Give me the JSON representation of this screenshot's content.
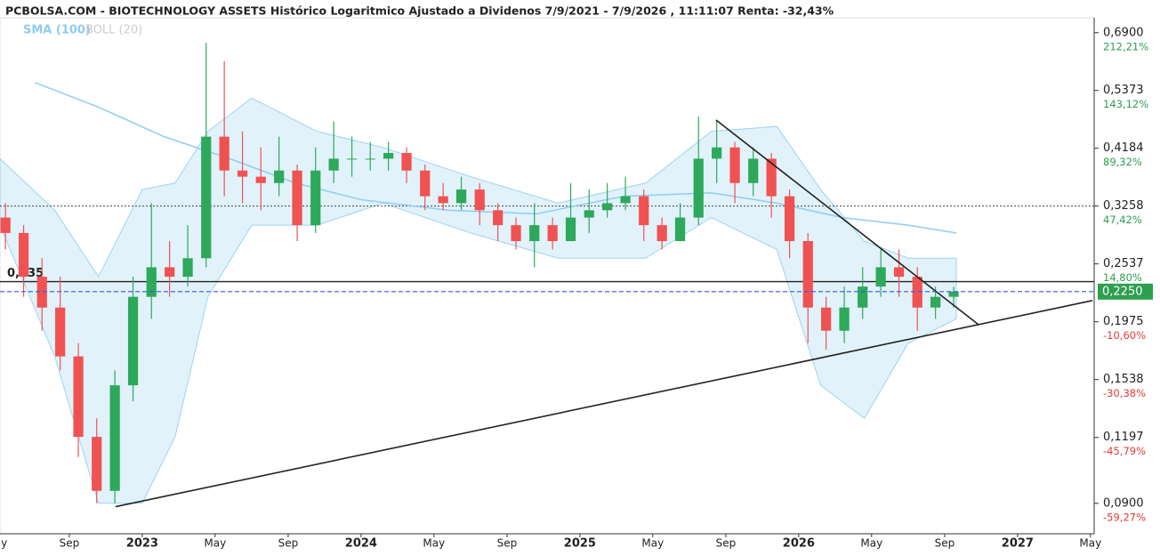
{
  "chart_data": {
    "type": "candlestick",
    "title": "PCBOLSA.COM - BIOTECHNOLOGY ASSETS Histórico Logaritmico Ajustado a Dividenos 7/9/2021 - 7/9/2026 , 11:11:07 Renta: -32,43%",
    "log_scale": true,
    "up_color": "#2ea85a",
    "down_color": "#f05252",
    "xlim": [
      2022.35,
      2027.35
    ],
    "ylim": [
      0.0789,
      0.736
    ],
    "yticks": [
      {
        "value": 0.69,
        "label": "0,6900"
      },
      {
        "value": 0.5373,
        "label": "0,5373"
      },
      {
        "value": 0.4184,
        "label": "0,4184"
      },
      {
        "value": 0.3258,
        "label": "0,3258"
      },
      {
        "value": 0.2537,
        "label": "0,2537"
      },
      {
        "value": 0.1975,
        "label": "0,1975"
      },
      {
        "value": 0.1538,
        "label": "0,1538"
      },
      {
        "value": 0.1197,
        "label": "0,1197"
      },
      {
        "value": 0.09,
        "label": "0,0900"
      }
    ],
    "ytick_returns": [
      "212,21%",
      "143,12%",
      "89,32%",
      "47,42%",
      "14,80%",
      "-10,60%",
      "-30,38%",
      "-45,79%",
      "-59,27%"
    ],
    "xticks": [
      {
        "value": 2022.333,
        "label": "May"
      },
      {
        "value": 2022.667,
        "label": "Sep"
      },
      2023,
      {
        "value": 2023.333,
        "label": "May"
      },
      {
        "value": 2023.667,
        "label": "Sep"
      },
      2024,
      {
        "value": 2024.333,
        "label": "May"
      },
      {
        "value": 2024.667,
        "label": "Sep"
      },
      2025,
      {
        "value": 2025.333,
        "label": "May"
      },
      {
        "value": 2025.667,
        "label": "Sep"
      },
      2026,
      {
        "value": 2026.333,
        "label": "May"
      },
      {
        "value": 2026.667,
        "label": "Sep"
      },
      2027,
      {
        "value": 2027.333,
        "label": "May"
      }
    ],
    "x": [
      2022.375,
      2022.458,
      2022.542,
      2022.625,
      2022.708,
      2022.792,
      2022.875,
      2022.958,
      2023.042,
      2023.125,
      2023.208,
      2023.292,
      2023.375,
      2023.458,
      2023.542,
      2023.625,
      2023.708,
      2023.792,
      2023.875,
      2023.958,
      2024.042,
      2024.125,
      2024.208,
      2024.292,
      2024.375,
      2024.458,
      2024.542,
      2024.625,
      2024.708,
      2024.792,
      2024.875,
      2024.958,
      2025.042,
      2025.125,
      2025.208,
      2025.292,
      2025.375,
      2025.458,
      2025.542,
      2025.625,
      2025.708,
      2025.792,
      2025.875,
      2025.958,
      2026.042,
      2026.125,
      2026.208,
      2026.292,
      2026.375,
      2026.458,
      2026.542,
      2026.625,
      2026.708
    ],
    "open": [
      0.31,
      0.29,
      0.24,
      0.21,
      0.17,
      0.12,
      0.095,
      0.15,
      0.22,
      0.25,
      0.24,
      0.26,
      0.44,
      0.38,
      0.37,
      0.36,
      0.38,
      0.3,
      0.38,
      0.4,
      0.4,
      0.4,
      0.41,
      0.38,
      0.34,
      0.33,
      0.35,
      0.32,
      0.3,
      0.28,
      0.3,
      0.28,
      0.31,
      0.32,
      0.33,
      0.34,
      0.3,
      0.28,
      0.31,
      0.4,
      0.42,
      0.36,
      0.4,
      0.34,
      0.28,
      0.21,
      0.19,
      0.21,
      0.23,
      0.25,
      0.24,
      0.21,
      0.22
    ],
    "high": [
      0.33,
      0.3,
      0.26,
      0.24,
      0.18,
      0.13,
      0.16,
      0.24,
      0.33,
      0.28,
      0.3,
      0.66,
      0.61,
      0.45,
      0.42,
      0.44,
      0.39,
      0.42,
      0.47,
      0.44,
      0.43,
      0.43,
      0.42,
      0.39,
      0.36,
      0.37,
      0.36,
      0.33,
      0.31,
      0.33,
      0.31,
      0.36,
      0.35,
      0.36,
      0.37,
      0.35,
      0.31,
      0.33,
      0.48,
      0.47,
      0.43,
      0.42,
      0.41,
      0.35,
      0.29,
      0.22,
      0.23,
      0.25,
      0.27,
      0.27,
      0.25,
      0.23,
      0.23
    ],
    "low": [
      0.27,
      0.22,
      0.19,
      0.16,
      0.11,
      0.09,
      0.09,
      0.14,
      0.2,
      0.22,
      0.23,
      0.25,
      0.34,
      0.33,
      0.32,
      0.34,
      0.28,
      0.29,
      0.36,
      0.37,
      0.38,
      0.38,
      0.36,
      0.32,
      0.32,
      0.32,
      0.3,
      0.28,
      0.27,
      0.25,
      0.27,
      0.28,
      0.29,
      0.31,
      0.32,
      0.28,
      0.27,
      0.28,
      0.3,
      0.36,
      0.33,
      0.34,
      0.31,
      0.26,
      0.18,
      0.175,
      0.18,
      0.2,
      0.22,
      0.22,
      0.19,
      0.2,
      0.21
    ],
    "close": [
      0.29,
      0.24,
      0.21,
      0.17,
      0.12,
      0.095,
      0.15,
      0.22,
      0.25,
      0.24,
      0.26,
      0.44,
      0.38,
      0.37,
      0.36,
      0.38,
      0.3,
      0.38,
      0.4,
      0.4,
      0.4,
      0.41,
      0.38,
      0.34,
      0.33,
      0.35,
      0.32,
      0.3,
      0.28,
      0.3,
      0.28,
      0.31,
      0.32,
      0.33,
      0.34,
      0.3,
      0.28,
      0.31,
      0.4,
      0.42,
      0.36,
      0.4,
      0.34,
      0.28,
      0.21,
      0.19,
      0.21,
      0.23,
      0.25,
      0.24,
      0.21,
      0.22,
      0.225
    ],
    "sma": {
      "name": "SMA (100)",
      "color": "#8ecdf0",
      "x": [
        2022.51,
        2022.8,
        2023.1,
        2023.4,
        2023.7,
        2024.0,
        2024.4,
        2024.8,
        2025.2,
        2025.6,
        2025.9,
        2026.2,
        2026.5,
        2026.72
      ],
      "values": [
        0.556,
        0.5,
        0.44,
        0.4,
        0.36,
        0.335,
        0.32,
        0.315,
        0.34,
        0.345,
        0.33,
        0.31,
        0.3,
        0.29
      ]
    },
    "bollinger": {
      "name": "BOLL (20)",
      "color": "#bde3f7",
      "x": [
        2022.35,
        2022.6,
        2022.8,
        2023.0,
        2023.15,
        2023.3,
        2023.5,
        2023.8,
        2024.1,
        2024.5,
        2024.9,
        2025.3,
        2025.6,
        2025.9,
        2026.1,
        2026.3,
        2026.5,
        2026.72
      ],
      "upper": [
        0.4,
        0.32,
        0.24,
        0.35,
        0.36,
        0.45,
        0.52,
        0.45,
        0.42,
        0.37,
        0.33,
        0.36,
        0.45,
        0.46,
        0.35,
        0.28,
        0.26,
        0.26
      ],
      "lower": [
        0.3,
        0.17,
        0.09,
        0.09,
        0.12,
        0.22,
        0.3,
        0.3,
        0.33,
        0.29,
        0.26,
        0.26,
        0.31,
        0.27,
        0.15,
        0.13,
        0.18,
        0.2
      ]
    },
    "hlines": [
      {
        "value": 0.235,
        "label": "0,235",
        "style": "solid",
        "color": "#222222"
      },
      {
        "value": 0.3258,
        "style": "dotted",
        "color": "#444444"
      }
    ],
    "last_price": {
      "value": 0.225,
      "label": "0,2250",
      "color": "#3355ee",
      "box_color": "#2e9e4f"
    },
    "trendlines": [
      {
        "x": [
          2022.878,
          2027.342
        ],
        "y": [
          0.0887,
          0.2165
        ]
      },
      {
        "x": [
          2025.622,
          2026.822
        ],
        "y": [
          0.473,
          0.195
        ]
      }
    ]
  }
}
